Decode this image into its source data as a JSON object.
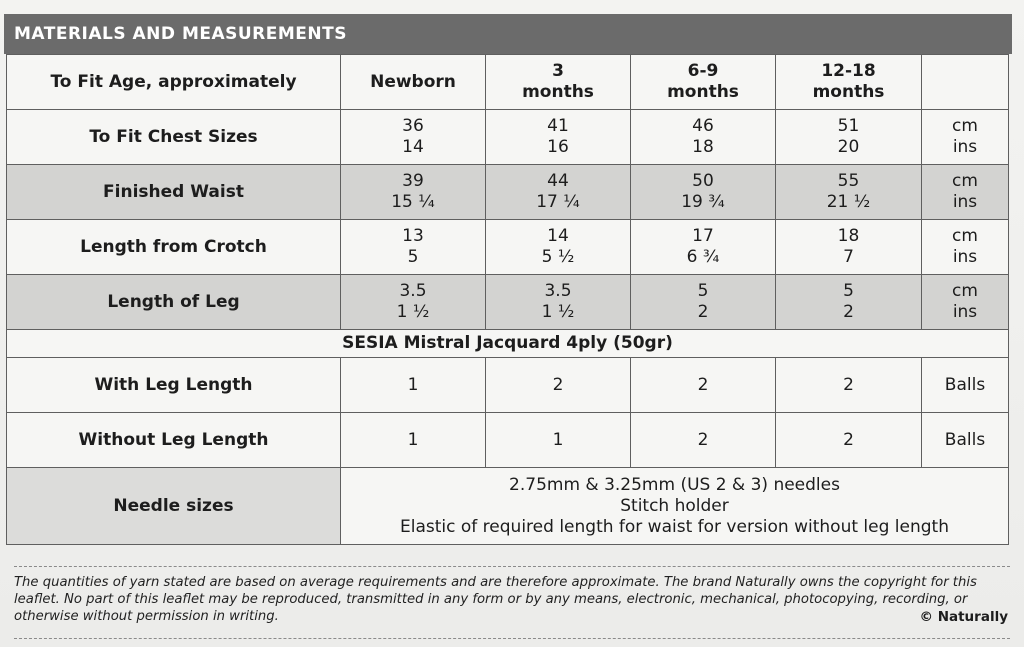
{
  "title": "MATERIALS AND MEASUREMENTS",
  "header": {
    "label": "To Fit Age, approximately",
    "sizes": [
      {
        "line1": "Newborn",
        "line2": ""
      },
      {
        "line1": "3",
        "line2": "months"
      },
      {
        "line1": "6-9",
        "line2": "months"
      },
      {
        "line1": "12-18",
        "line2": "months"
      }
    ]
  },
  "measurements": [
    {
      "label": "To Fit Chest Sizes",
      "cm": [
        "36",
        "41",
        "46",
        "51"
      ],
      "ins": [
        "14",
        "16",
        "18",
        "20"
      ],
      "unit_cm": "cm",
      "unit_ins": "ins"
    },
    {
      "label": "Finished Waist",
      "cm": [
        "39",
        "44",
        "50",
        "55"
      ],
      "ins": [
        "15 ¼",
        "17 ¼",
        "19 ¾",
        "21 ½"
      ],
      "unit_cm": "cm",
      "unit_ins": "ins"
    },
    {
      "label": "Length from Crotch",
      "cm": [
        "13",
        "14",
        "17",
        "18"
      ],
      "ins": [
        "5",
        "5 ½",
        "6 ¾",
        "7"
      ],
      "unit_cm": "cm",
      "unit_ins": "ins"
    },
    {
      "label": "Length of Leg",
      "cm": [
        "3.5",
        "3.5",
        "5",
        "5"
      ],
      "ins": [
        "1 ½",
        "1 ½",
        "2",
        "2"
      ],
      "unit_cm": "cm",
      "unit_ins": "ins"
    }
  ],
  "yarn": {
    "heading": "SESIA  Mistral Jacquard 4ply (50gr)",
    "rows": [
      {
        "label": "With Leg Length",
        "values": [
          "1",
          "2",
          "2",
          "2"
        ],
        "unit": "Balls"
      },
      {
        "label": "Without Leg Length",
        "values": [
          "1",
          "1",
          "2",
          "2"
        ],
        "unit": "Balls"
      }
    ]
  },
  "needles": {
    "label": "Needle sizes",
    "lines": [
      "2.75mm & 3.25mm (US 2 & 3) needles",
      "Stitch holder",
      "Elastic of required length for waist for version without leg length"
    ]
  },
  "footer": {
    "disclaimer": "The quantities of yarn stated are based on average requirements and are therefore approximate. The brand Naturally owns the copyright for this leaflet. No part of this leaflet may be reproduced, transmitted in any form or by any means, electronic, mechanical, photocopying, recording, or otherwise without permission in writing.",
    "copyright": "© Naturally"
  }
}
